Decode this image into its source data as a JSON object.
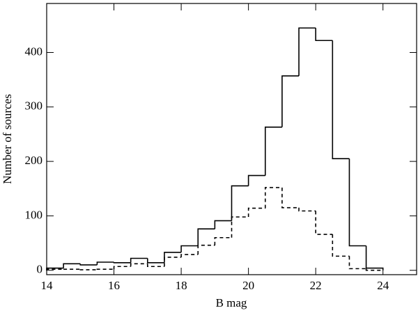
{
  "chart_data": {
    "type": "histogram",
    "x_label": "B mag",
    "y_label": "Number of sources",
    "bins": [
      14,
      14.5,
      15,
      15.5,
      16,
      16.5,
      17,
      17.5,
      18,
      18.5,
      19,
      19.5,
      20,
      20.5,
      21,
      21.5,
      22,
      22.5,
      23,
      23.5,
      24
    ],
    "series": [
      {
        "color": "#000000",
        "linestyle": "solid",
        "values": [
          4,
          12,
          10,
          15,
          14,
          22,
          14,
          33,
          45,
          76,
          91,
          155,
          174,
          263,
          357,
          445,
          422,
          205,
          45,
          4
        ]
      },
      {
        "color": "#000000",
        "linestyle": "dashed",
        "values": [
          2,
          2,
          1,
          2,
          7,
          12,
          7,
          24,
          29,
          46,
          60,
          98,
          114,
          152,
          115,
          109,
          66,
          26,
          3,
          0
        ]
      }
    ],
    "xlim": [
      14,
      25
    ],
    "xticks": [
      14,
      16,
      18,
      20,
      22,
      24
    ],
    "ylim": [
      -8,
      490
    ],
    "yticks": [
      0,
      100,
      200,
      300,
      400
    ]
  }
}
